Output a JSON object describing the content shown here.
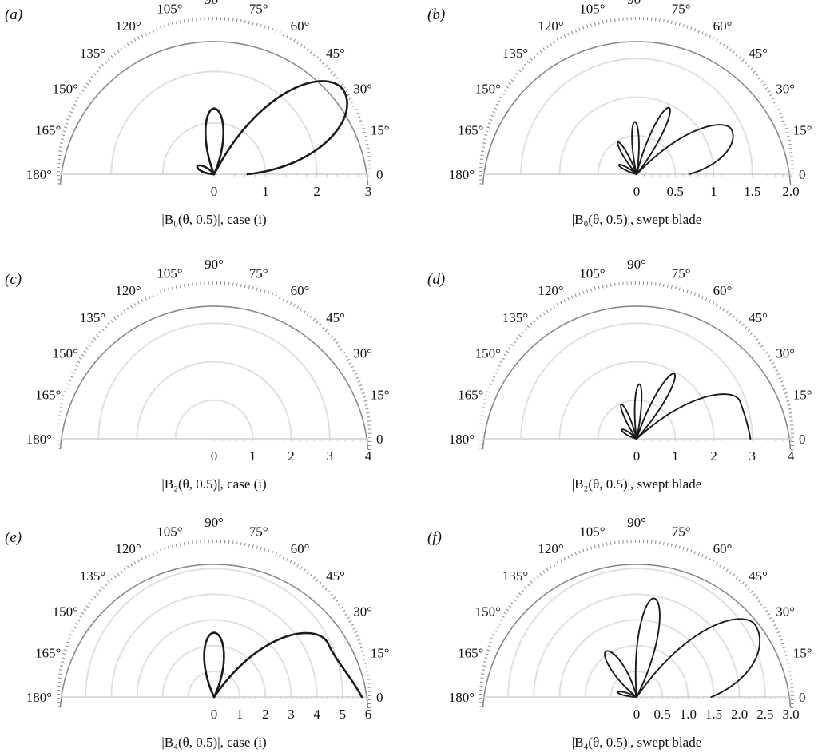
{
  "chart_data": [
    {
      "type": "polar",
      "panel": "(a)",
      "caption": "|B₀(θ, 0.5)|, case (i)",
      "angle_ticks": [
        "0",
        "15°",
        "30°",
        "45°",
        "60°",
        "75°",
        "90°",
        "105°",
        "120°",
        "135°",
        "150°",
        "165°",
        "180°"
      ],
      "r_ticks": [
        "0",
        "1",
        "2",
        "3"
      ],
      "rlim": [
        0,
        3
      ],
      "grid": true,
      "series": [
        {
          "lobes": [
            {
              "start_r": 0.65,
              "peak_theta": 33,
              "peak_r": 3.0,
              "end_theta": 62
            },
            {
              "start_theta": 66,
              "peak_theta": 90,
              "peak_r": 1.28,
              "end_theta": 112
            },
            {
              "start_theta": 130,
              "peak_theta": 155,
              "peak_r": 0.36,
              "end_theta": 178
            }
          ]
        }
      ]
    },
    {
      "type": "polar",
      "panel": "(b)",
      "caption": "|B₀(θ, 0.5)|, swept blade",
      "angle_ticks": [
        "0",
        "15°",
        "30°",
        "45°",
        "60°",
        "75°",
        "90°",
        "105°",
        "120°",
        "135°",
        "150°",
        "165°",
        "180°"
      ],
      "r_ticks": [
        "0",
        "0.5",
        "1",
        "1.5",
        "2.0"
      ],
      "rlim": [
        0,
        2
      ],
      "grid": true,
      "series": [
        {
          "lobes": [
            {
              "start_r": 0.68,
              "peak_theta": 25,
              "peak_r": 1.36,
              "end_theta": 46
            },
            {
              "start_theta": 52,
              "peak_theta": 64,
              "peak_r": 0.96,
              "end_theta": 76
            },
            {
              "start_theta": 81,
              "peak_theta": 92,
              "peak_r": 0.68,
              "end_theta": 103
            },
            {
              "start_theta": 110,
              "peak_theta": 120,
              "peak_r": 0.48,
              "end_theta": 131
            },
            {
              "start_theta": 140,
              "peak_theta": 152,
              "peak_r": 0.26,
              "end_theta": 166
            }
          ]
        }
      ]
    },
    {
      "type": "polar",
      "panel": "(c)",
      "caption": "|B₂(θ, 0.5)|, case (i)",
      "angle_ticks": [
        "0",
        "15°",
        "30°",
        "45°",
        "60°",
        "75°",
        "90°",
        "105°",
        "120°",
        "135°",
        "150°",
        "165°",
        "180°"
      ],
      "r_ticks": [
        "0",
        "1",
        "2",
        "3",
        "4"
      ],
      "rlim": [
        0,
        4
      ],
      "grid": true,
      "series": []
    },
    {
      "type": "polar",
      "panel": "(d)",
      "caption": "|B₂(θ, 0.5)|, swept blade",
      "angle_ticks": [
        "0",
        "15°",
        "30°",
        "45°",
        "60°",
        "75°",
        "90°",
        "105°",
        "120°",
        "135°",
        "150°",
        "165°",
        "180°"
      ],
      "r_ticks": [
        "0",
        "1",
        "2",
        "3",
        "4"
      ],
      "rlim": [
        0,
        4
      ],
      "grid": true,
      "series": [
        {
          "lobes": [
            {
              "start_r": 2.95,
              "peak_theta": 20,
              "peak_r": 2.85,
              "end_theta": 42
            },
            {
              "start_theta": 48,
              "peak_theta": 60,
              "peak_r": 1.95,
              "end_theta": 72
            },
            {
              "start_theta": 78,
              "peak_theta": 87,
              "peak_r": 1.42,
              "end_theta": 98
            },
            {
              "start_theta": 104,
              "peak_theta": 114,
              "peak_r": 0.98,
              "end_theta": 125
            },
            {
              "start_theta": 134,
              "peak_theta": 148,
              "peak_r": 0.45,
              "end_theta": 165
            }
          ]
        }
      ]
    },
    {
      "type": "polar",
      "panel": "(e)",
      "caption": "|B₄(θ, 0.5)|, case (i)",
      "angle_ticks": [
        "0",
        "15°",
        "30°",
        "45°",
        "60°",
        "75°",
        "90°",
        "105°",
        "120°",
        "135°",
        "150°",
        "165°",
        "180°"
      ],
      "r_ticks": [
        "0",
        "1",
        "2",
        "3",
        "4",
        "5",
        "6"
      ],
      "rlim": [
        0,
        6
      ],
      "grid": true,
      "series": [
        {
          "lobes": [
            {
              "start_r": 5.75,
              "peak_theta": 25,
              "peak_r": 4.9,
              "end_theta": 55
            },
            {
              "start_theta": 64,
              "peak_theta": 90,
              "peak_r": 2.5,
              "end_theta": 116
            }
          ]
        }
      ]
    },
    {
      "type": "polar",
      "panel": "(f)",
      "caption": "|B₄(θ, 0.5)|, swept blade",
      "angle_ticks": [
        "0",
        "15°",
        "30°",
        "45°",
        "60°",
        "75°",
        "90°",
        "105°",
        "120°",
        "135°",
        "150°",
        "165°",
        "180°"
      ],
      "r_ticks": [
        "0",
        "0.5",
        "1.0",
        "1.5",
        "2.0",
        "2.5",
        "3.0"
      ],
      "rlim": [
        0,
        3
      ],
      "grid": true,
      "series": [
        {
          "lobes": [
            {
              "start_r": 1.45,
              "peak_theta": 31,
              "peak_r": 2.7,
              "end_theta": 55
            },
            {
              "start_theta": 63,
              "peak_theta": 80,
              "peak_r": 1.95,
              "end_theta": 95
            },
            {
              "start_theta": 104,
              "peak_theta": 124,
              "peak_r": 1.07,
              "end_theta": 142
            },
            {
              "start_theta": 152,
              "peak_theta": 166,
              "peak_r": 0.38,
              "end_theta": 178
            }
          ]
        }
      ]
    }
  ]
}
